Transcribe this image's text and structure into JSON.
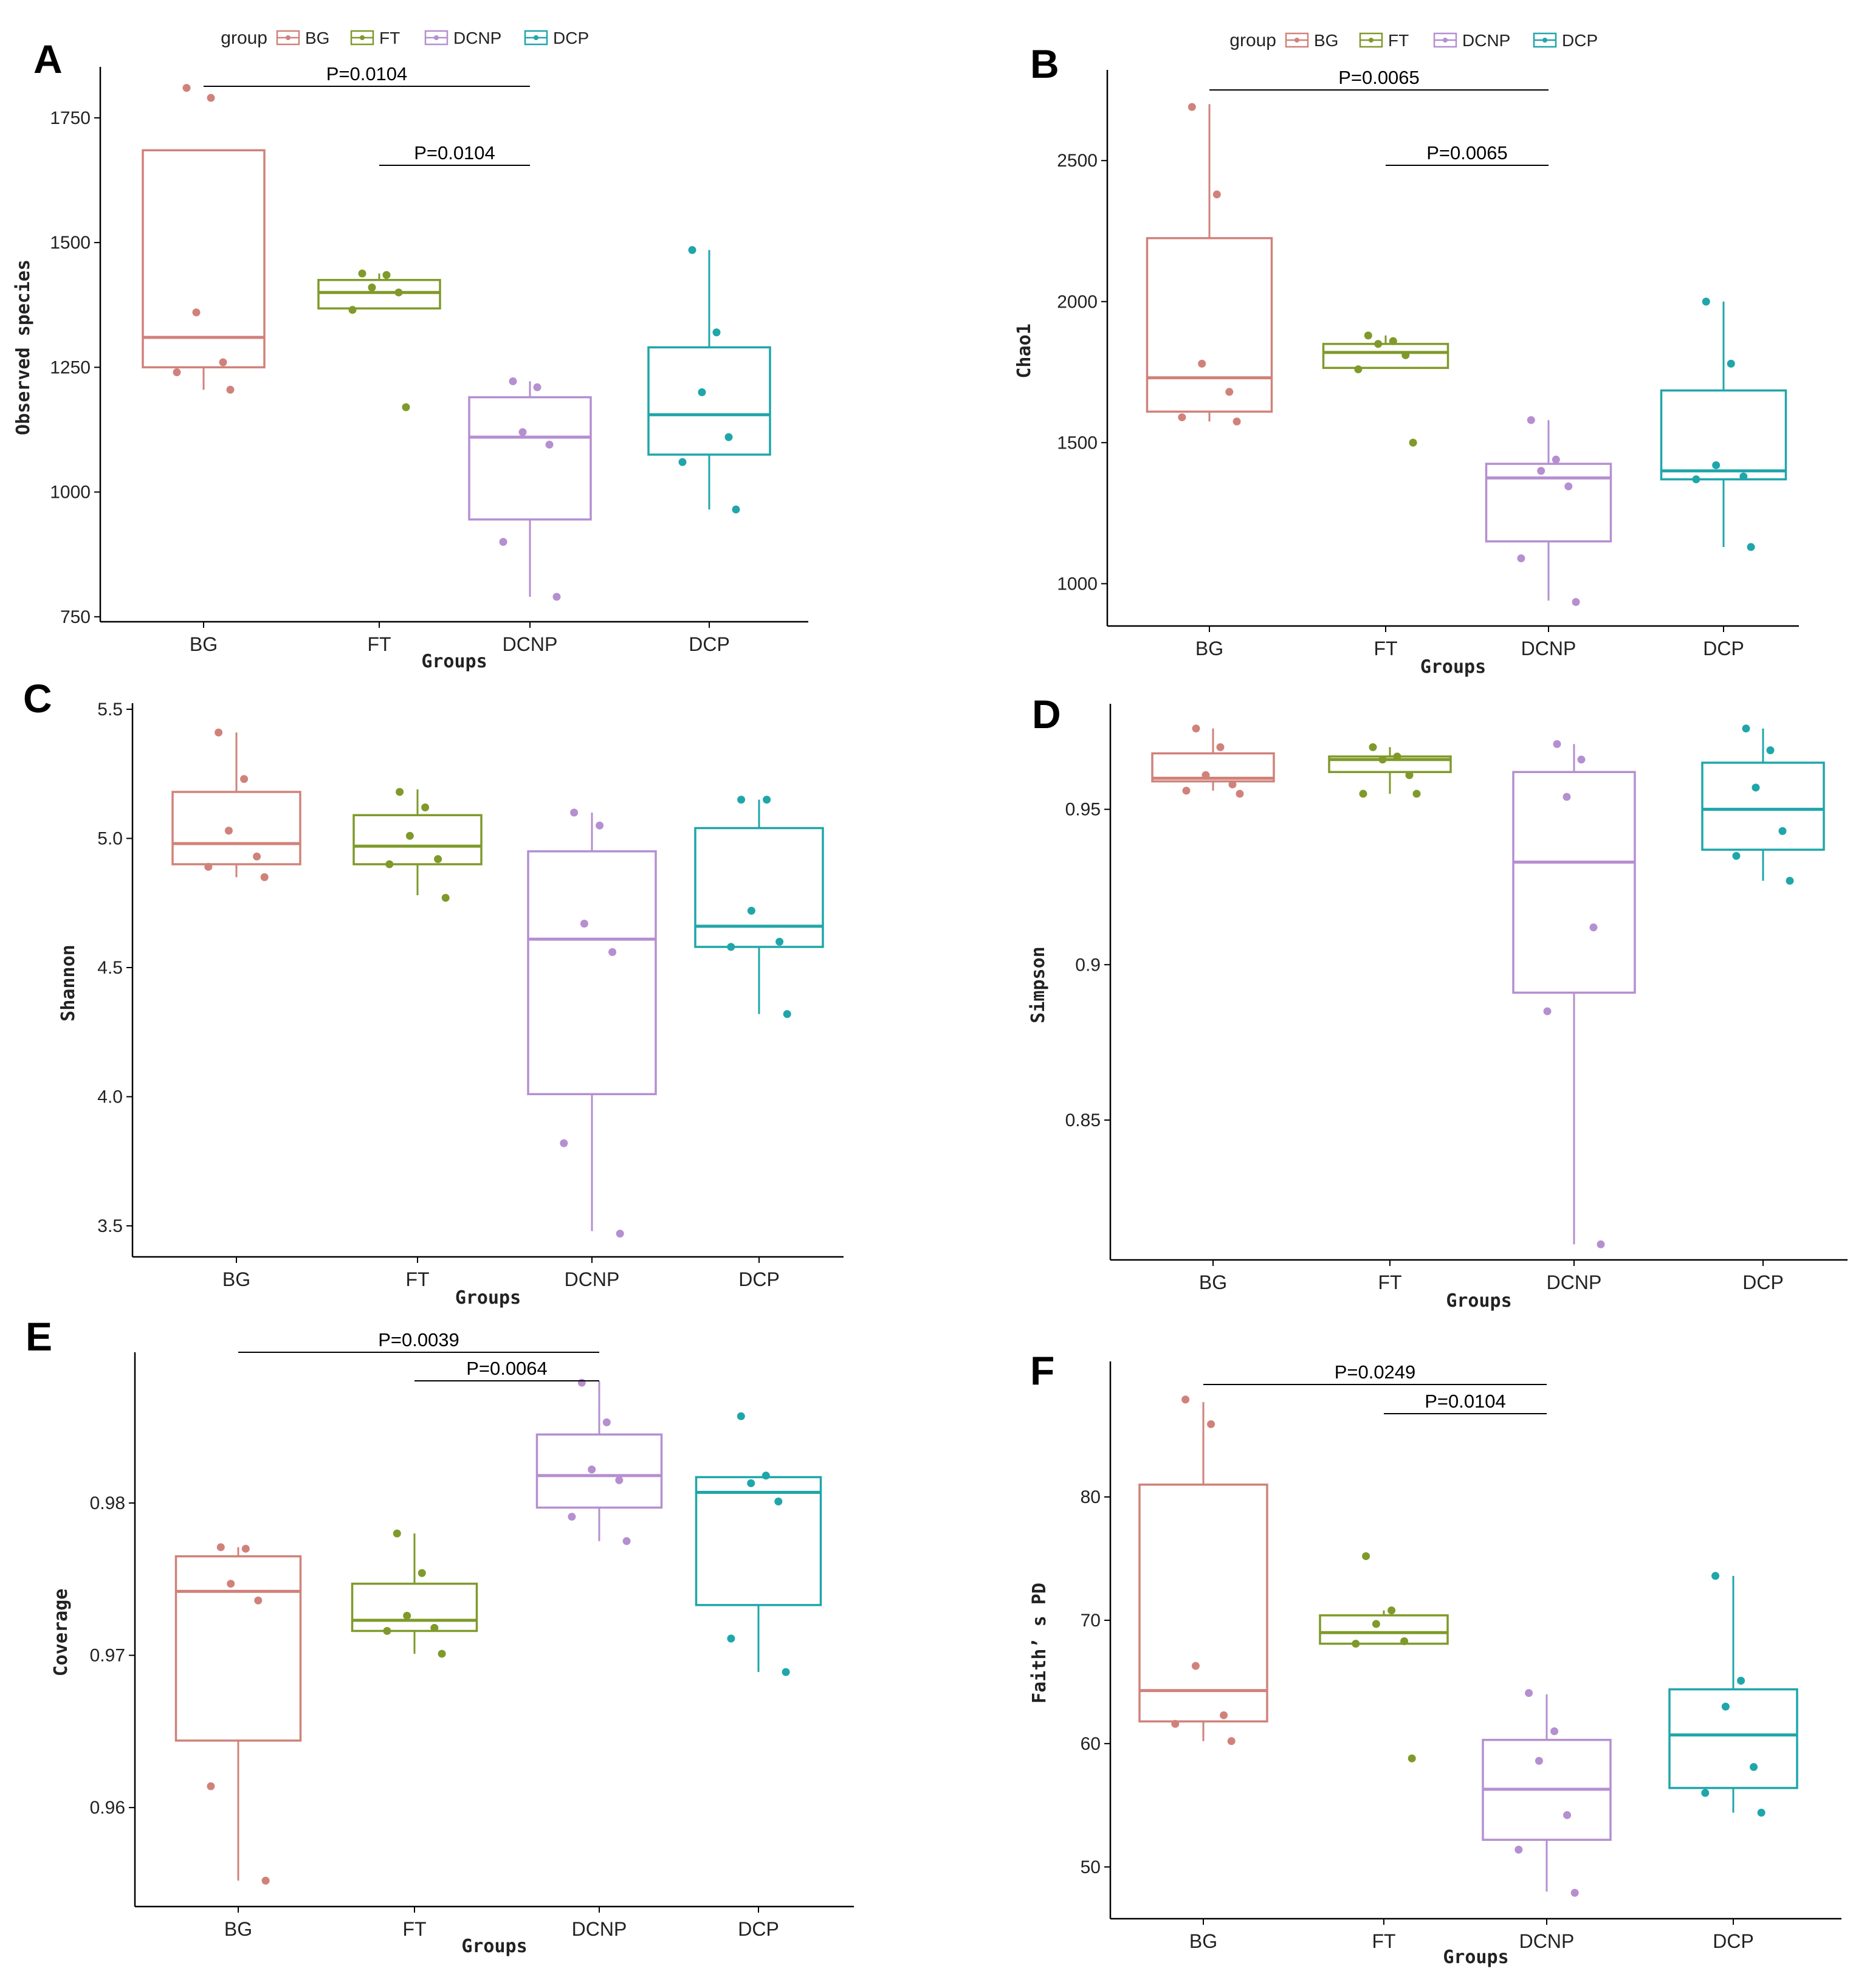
{
  "legend": {
    "title": "group",
    "groups": [
      "BG",
      "FT",
      "DCNP",
      "DCP"
    ],
    "colors": {
      "BG": "#d0827a",
      "FT": "#7f9a2a",
      "DCNP": "#b58fd0",
      "DCP": "#1fa6aa"
    }
  },
  "chart_data": [
    {
      "panel": "A",
      "type": "box",
      "xlabel": "Groups",
      "ylabel": "Observed species",
      "ylim": [
        740,
        1840
      ],
      "yticks": [
        750,
        1000,
        1250,
        1500,
        1750
      ],
      "categories": [
        "BG",
        "FT",
        "DCNP",
        "DCP"
      ],
      "boxes": [
        {
          "q1": 1250,
          "median": 1310,
          "q3": 1685,
          "lo": 1205,
          "hi": 1685
        },
        {
          "q1": 1368,
          "median": 1400,
          "q3": 1425,
          "lo": 1368,
          "hi": 1438
        },
        {
          "q1": 945,
          "median": 1110,
          "q3": 1190,
          "lo": 790,
          "hi": 1222
        },
        {
          "q1": 1075,
          "median": 1155,
          "q3": 1290,
          "lo": 965,
          "hi": 1485
        }
      ],
      "points": [
        [
          1810,
          1790,
          1360,
          1260,
          1240,
          1205
        ],
        [
          1438,
          1435,
          1410,
          1400,
          1365,
          1170
        ],
        [
          1222,
          1210,
          1120,
          1095,
          900,
          790
        ],
        [
          1485,
          1320,
          1200,
          1110,
          1060,
          965
        ]
      ],
      "brackets": [
        {
          "from": "BG",
          "to": "DCNP",
          "label": "P=0.0104",
          "level": 0
        },
        {
          "from": "FT",
          "to": "DCNP",
          "label": "P=0.0104",
          "level": 1
        }
      ]
    },
    {
      "panel": "B",
      "type": "box",
      "xlabel": "Groups",
      "ylabel": "Chao1",
      "ylim": [
        850,
        2800
      ],
      "yticks": [
        1000,
        1500,
        2000,
        2500
      ],
      "categories": [
        "BG",
        "FT",
        "DCNP",
        "DCP"
      ],
      "boxes": [
        {
          "q1": 1610,
          "median": 1730,
          "q3": 2225,
          "lo": 1575,
          "hi": 2700
        },
        {
          "q1": 1765,
          "median": 1820,
          "q3": 1850,
          "lo": 1765,
          "hi": 1880
        },
        {
          "q1": 1150,
          "median": 1375,
          "q3": 1425,
          "lo": 940,
          "hi": 1580
        },
        {
          "q1": 1370,
          "median": 1400,
          "q3": 1685,
          "lo": 1130,
          "hi": 2000
        }
      ],
      "points": [
        [
          2690,
          2380,
          1780,
          1680,
          1590,
          1575
        ],
        [
          1880,
          1860,
          1850,
          1810,
          1760,
          1500
        ],
        [
          1580,
          1440,
          1400,
          1345,
          1090,
          935
        ],
        [
          2000,
          1780,
          1420,
          1380,
          1370,
          1130
        ]
      ],
      "brackets": [
        {
          "from": "BG",
          "to": "DCNP",
          "label": "P=0.0065",
          "level": 0
        },
        {
          "from": "FT",
          "to": "DCNP",
          "label": "P=0.0065",
          "level": 1
        }
      ]
    },
    {
      "panel": "C",
      "type": "box",
      "xlabel": "Groups",
      "ylabel": "Shannon",
      "ylim": [
        3.38,
        5.5
      ],
      "yticks": [
        3.5,
        4.0,
        4.5,
        5.0,
        5.5
      ],
      "categories": [
        "BG",
        "FT",
        "DCNP",
        "DCP"
      ],
      "boxes": [
        {
          "q1": 4.9,
          "median": 4.98,
          "q3": 5.18,
          "lo": 4.85,
          "hi": 5.41
        },
        {
          "q1": 4.9,
          "median": 4.97,
          "q3": 5.09,
          "lo": 4.78,
          "hi": 5.19
        },
        {
          "q1": 4.01,
          "median": 4.61,
          "q3": 4.95,
          "lo": 3.48,
          "hi": 5.1
        },
        {
          "q1": 4.58,
          "median": 4.66,
          "q3": 5.04,
          "lo": 4.32,
          "hi": 5.15
        }
      ],
      "points": [
        [
          5.41,
          5.23,
          5.03,
          4.93,
          4.89,
          4.85
        ],
        [
          5.18,
          5.12,
          5.01,
          4.92,
          4.9,
          4.77
        ],
        [
          5.1,
          5.05,
          4.67,
          4.56,
          3.82,
          3.47
        ],
        [
          5.15,
          5.15,
          4.72,
          4.6,
          4.58,
          4.32
        ]
      ],
      "brackets": []
    },
    {
      "panel": "D",
      "type": "box",
      "xlabel": "Groups",
      "ylabel": "Simpson",
      "ylim": [
        0.805,
        0.982
      ],
      "yticks": [
        0.85,
        0.9,
        0.95
      ],
      "categories": [
        "BG",
        "FT",
        "DCNP",
        "DCP"
      ],
      "boxes": [
        {
          "q1": 0.959,
          "median": 0.96,
          "q3": 0.968,
          "lo": 0.956,
          "hi": 0.976
        },
        {
          "q1": 0.962,
          "median": 0.966,
          "q3": 0.967,
          "lo": 0.955,
          "hi": 0.97
        },
        {
          "q1": 0.891,
          "median": 0.933,
          "q3": 0.962,
          "lo": 0.81,
          "hi": 0.971
        },
        {
          "q1": 0.937,
          "median": 0.95,
          "q3": 0.965,
          "lo": 0.927,
          "hi": 0.976
        }
      ],
      "points": [
        [
          0.976,
          0.97,
          0.961,
          0.958,
          0.956,
          0.955
        ],
        [
          0.97,
          0.967,
          0.966,
          0.961,
          0.955,
          0.955
        ],
        [
          0.971,
          0.966,
          0.954,
          0.912,
          0.885,
          0.81
        ],
        [
          0.976,
          0.969,
          0.957,
          0.943,
          0.935,
          0.927
        ]
      ],
      "brackets": []
    },
    {
      "panel": "E",
      "type": "box",
      "xlabel": "Groups",
      "ylabel": "Coverage",
      "ylim": [
        0.9535,
        0.9895
      ],
      "yticks": [
        0.96,
        0.97,
        0.98
      ],
      "categories": [
        "BG",
        "FT",
        "DCNP",
        "DCP"
      ],
      "boxes": [
        {
          "q1": 0.9644,
          "median": 0.9742,
          "q3": 0.9765,
          "lo": 0.9552,
          "hi": 0.9771
        },
        {
          "q1": 0.9716,
          "median": 0.9723,
          "q3": 0.9747,
          "lo": 0.9701,
          "hi": 0.978
        },
        {
          "q1": 0.9797,
          "median": 0.9818,
          "q3": 0.9845,
          "lo": 0.9775,
          "hi": 0.988
        },
        {
          "q1": 0.9733,
          "median": 0.9807,
          "q3": 0.9817,
          "lo": 0.9689,
          "hi": 0.9817
        }
      ],
      "points": [
        [
          0.9771,
          0.977,
          0.9747,
          0.9736,
          0.9614,
          0.9552
        ],
        [
          0.978,
          0.9754,
          0.9726,
          0.9718,
          0.9716,
          0.9701
        ],
        [
          0.9879,
          0.9853,
          0.9822,
          0.9815,
          0.9791,
          0.9775
        ],
        [
          0.9857,
          0.9818,
          0.9813,
          0.9801,
          0.9711,
          0.9689
        ]
      ],
      "brackets": [
        {
          "from": "BG",
          "to": "DCNP",
          "label": "P=0.0039",
          "level": 0
        },
        {
          "from": "FT",
          "to": "DCNP",
          "label": "P=0.0064",
          "level": 1
        }
      ]
    },
    {
      "panel": "F",
      "type": "box",
      "xlabel": "Groups",
      "ylabel": "Faith’ s PD",
      "ylim": [
        45.8,
        90.5
      ],
      "yticks": [
        50,
        60,
        70,
        80
      ],
      "categories": [
        "BG",
        "FT",
        "DCNP",
        "DCP"
      ],
      "boxes": [
        {
          "q1": 61.8,
          "median": 64.3,
          "q3": 81.0,
          "lo": 60.2,
          "hi": 87.7
        },
        {
          "q1": 68.1,
          "median": 69.0,
          "q3": 70.4,
          "lo": 68.1,
          "hi": 70.8
        },
        {
          "q1": 52.2,
          "median": 56.3,
          "q3": 60.3,
          "lo": 48.0,
          "hi": 64.0
        },
        {
          "q1": 56.4,
          "median": 60.7,
          "q3": 64.4,
          "lo": 54.4,
          "hi": 73.6
        }
      ],
      "points": [
        [
          87.9,
          85.9,
          66.3,
          62.3,
          61.6,
          60.2
        ],
        [
          75.2,
          70.8,
          69.7,
          68.3,
          68.1,
          58.8
        ],
        [
          64.1,
          61.0,
          58.6,
          54.2,
          51.4,
          47.9
        ],
        [
          73.6,
          65.1,
          63.0,
          58.1,
          56.0,
          54.4
        ]
      ],
      "brackets": [
        {
          "from": "BG",
          "to": "DCNP",
          "label": "P=0.0249",
          "level": 0
        },
        {
          "from": "FT",
          "to": "DCNP",
          "label": "P=0.0104",
          "level": 1
        }
      ]
    }
  ]
}
